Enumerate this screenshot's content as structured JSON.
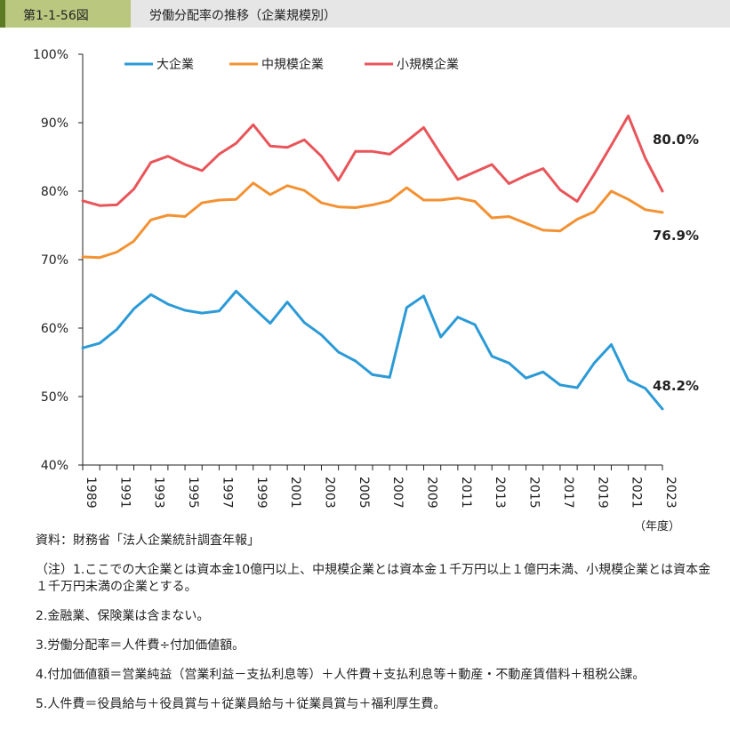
{
  "header": {
    "figure_number": "第1-1-56図",
    "title": "労働分配率の推移（企業規模別）"
  },
  "chart_data": {
    "type": "line",
    "title": "",
    "xlabel": "（年度）",
    "ylabel": "",
    "ylim": [
      40,
      100
    ],
    "y_ticks": [
      "40%",
      "50%",
      "60%",
      "70%",
      "80%",
      "90%",
      "100%"
    ],
    "x_tick_labels": [
      "1989",
      "1991",
      "1993",
      "1995",
      "1997",
      "1999",
      "2001",
      "2003",
      "2005",
      "2007",
      "2009",
      "2011",
      "2013",
      "2015",
      "2017",
      "2019",
      "2021",
      "2023"
    ],
    "legend_position": "top",
    "grid": false,
    "x": [
      1989,
      1990,
      1991,
      1992,
      1993,
      1994,
      1995,
      1996,
      1997,
      1998,
      1999,
      2000,
      2001,
      2002,
      2003,
      2004,
      2005,
      2006,
      2007,
      2008,
      2009,
      2010,
      2011,
      2012,
      2013,
      2014,
      2015,
      2016,
      2017,
      2018,
      2019,
      2020,
      2021,
      2022,
      2023
    ],
    "series": [
      {
        "name": "大企業",
        "color": "#2b9ad6",
        "end_label": "48.2%",
        "values": [
          57.1,
          57.8,
          59.8,
          62.8,
          64.9,
          63.5,
          62.6,
          62.2,
          62.5,
          65.4,
          63.0,
          60.7,
          63.8,
          60.8,
          59.0,
          56.5,
          55.2,
          53.2,
          52.8,
          63.0,
          64.7,
          58.7,
          61.6,
          60.5,
          55.9,
          54.9,
          52.7,
          53.6,
          51.7,
          51.3,
          54.9,
          57.6,
          52.4,
          51.2,
          48.2
        ]
      },
      {
        "name": "中規模企業",
        "color": "#f39233",
        "end_label": "76.9%",
        "values": [
          70.4,
          70.3,
          71.1,
          72.7,
          75.8,
          76.5,
          76.3,
          78.3,
          78.7,
          78.8,
          81.2,
          79.5,
          80.8,
          80.1,
          78.3,
          77.7,
          77.6,
          78.0,
          78.6,
          80.5,
          78.7,
          78.7,
          79.0,
          78.5,
          76.1,
          76.3,
          75.3,
          74.3,
          74.2,
          75.9,
          77.0,
          80.0,
          78.8,
          77.3,
          76.9
        ]
      },
      {
        "name": "小規模企業",
        "color": "#e8555a",
        "end_label": "80.0%",
        "values": [
          78.6,
          77.9,
          78.0,
          80.3,
          84.2,
          85.1,
          83.9,
          83.0,
          85.4,
          87.0,
          89.7,
          86.6,
          86.4,
          87.5,
          85.1,
          81.6,
          85.8,
          85.8,
          85.4,
          87.3,
          89.3,
          85.4,
          81.7,
          82.8,
          83.9,
          81.1,
          82.3,
          83.3,
          80.2,
          78.5,
          82.5,
          86.7,
          91.0,
          84.8,
          80.0
        ]
      }
    ]
  },
  "notes": {
    "source": "資料：財務省「法人企業統計調査年報」",
    "note1": "（注）1.ここでの大企業とは資本金10億円以上、中規模企業とは資本金１千万円以上１億円未満、小規模企業とは資本金１千万円未満の企業とする。",
    "note2": "2.金融業、保険業は含まない。",
    "note3": "3.労働分配率＝人件費÷付加価値額。",
    "note4": "4.付加価値額＝営業純益（営業利益－支払利息等）＋人件費＋支払利息等＋動産・不動産賃借料＋租税公課。",
    "note5": "5.人件費＝役員給与＋役員賞与＋従業員給与＋従業員賞与＋福利厚生費。"
  }
}
